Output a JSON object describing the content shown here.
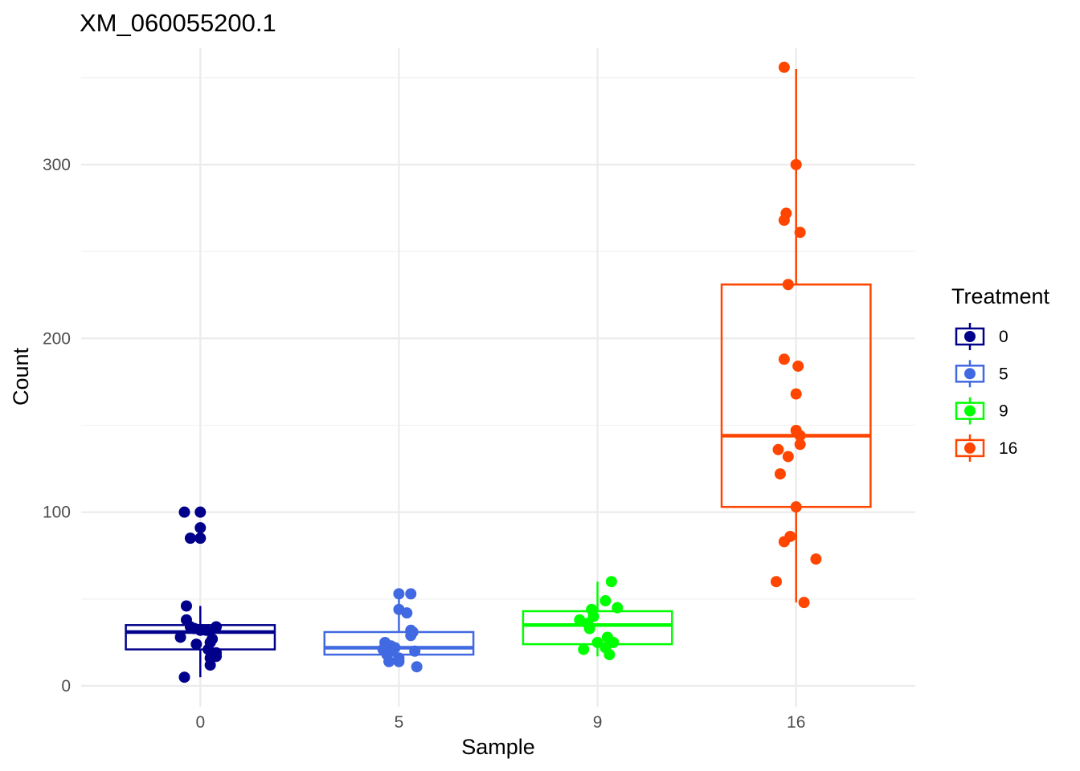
{
  "chart_data": {
    "type": "box",
    "title": "XM_060055200.1",
    "xlabel": "Sample",
    "ylabel": "Count",
    "ylim": [
      -12,
      367
    ],
    "y_ticks": [
      0,
      100,
      200,
      300
    ],
    "y_minor_ticks": [
      50,
      150,
      250,
      350
    ],
    "categories": [
      "0",
      "5",
      "9",
      "16"
    ],
    "grid": true,
    "legend": {
      "title": "Treatment",
      "position": "right"
    },
    "series": [
      {
        "name": "0",
        "color": "#00008B",
        "box": {
          "q1": 21,
          "median": 31,
          "q3": 35,
          "whisker_low": 5,
          "whisker_high": 46
        },
        "points": [
          [
            -0.08,
            100
          ],
          [
            0.0,
            100
          ],
          [
            0.0,
            91
          ],
          [
            -0.05,
            85
          ],
          [
            0.0,
            85
          ],
          [
            -0.07,
            46
          ],
          [
            -0.07,
            38
          ],
          [
            -0.05,
            34
          ],
          [
            -0.03,
            33
          ],
          [
            0.0,
            32
          ],
          [
            0.03,
            32
          ],
          [
            0.08,
            34
          ],
          [
            -0.1,
            28
          ],
          [
            0.06,
            27
          ],
          [
            0.05,
            25
          ],
          [
            -0.02,
            24
          ],
          [
            0.04,
            21
          ],
          [
            0.08,
            19
          ],
          [
            0.08,
            17
          ],
          [
            0.05,
            16
          ],
          [
            0.05,
            12
          ],
          [
            -0.08,
            5
          ]
        ]
      },
      {
        "name": "5",
        "color": "#4169E1",
        "box": {
          "q1": 18,
          "median": 22,
          "q3": 31,
          "whisker_low": 11,
          "whisker_high": 52
        },
        "points": [
          [
            0.0,
            53
          ],
          [
            0.06,
            53
          ],
          [
            0.0,
            44
          ],
          [
            0.04,
            42
          ],
          [
            0.06,
            32
          ],
          [
            0.07,
            31
          ],
          [
            0.06,
            29
          ],
          [
            -0.07,
            25
          ],
          [
            -0.04,
            23
          ],
          [
            -0.02,
            22
          ],
          [
            -0.08,
            21
          ],
          [
            -0.03,
            20
          ],
          [
            0.08,
            20
          ],
          [
            -0.06,
            18
          ],
          [
            0.0,
            16
          ],
          [
            -0.05,
            14
          ],
          [
            0.0,
            14
          ],
          [
            0.09,
            11
          ]
        ]
      },
      {
        "name": "9",
        "color": "#00FF00",
        "box": {
          "q1": 24,
          "median": 35,
          "q3": 43,
          "whisker_low": 17,
          "whisker_high": 60
        },
        "points": [
          [
            0.07,
            60
          ],
          [
            0.04,
            49
          ],
          [
            0.1,
            45
          ],
          [
            -0.03,
            44
          ],
          [
            -0.02,
            40
          ],
          [
            -0.09,
            38
          ],
          [
            -0.05,
            36
          ],
          [
            -0.04,
            33
          ],
          [
            0.05,
            28
          ],
          [
            0.08,
            25
          ],
          [
            0.0,
            25
          ],
          [
            0.04,
            22
          ],
          [
            -0.07,
            21
          ],
          [
            0.06,
            18
          ]
        ]
      },
      {
        "name": "16",
        "color": "#FF4500",
        "box": {
          "q1": 103,
          "median": 144,
          "q3": 231,
          "whisker_low": 48,
          "whisker_high": 355
        },
        "points": [
          [
            -0.06,
            356
          ],
          [
            0.0,
            300
          ],
          [
            -0.05,
            272
          ],
          [
            -0.06,
            268
          ],
          [
            0.02,
            261
          ],
          [
            -0.04,
            231
          ],
          [
            -0.06,
            188
          ],
          [
            0.01,
            184
          ],
          [
            0.0,
            168
          ],
          [
            0.0,
            147
          ],
          [
            0.02,
            144
          ],
          [
            0.02,
            139
          ],
          [
            -0.09,
            136
          ],
          [
            -0.04,
            132
          ],
          [
            -0.08,
            122
          ],
          [
            0.0,
            103
          ],
          [
            -0.03,
            86
          ],
          [
            -0.06,
            83
          ],
          [
            0.1,
            73
          ],
          [
            -0.1,
            60
          ],
          [
            0.04,
            48
          ]
        ]
      }
    ]
  }
}
